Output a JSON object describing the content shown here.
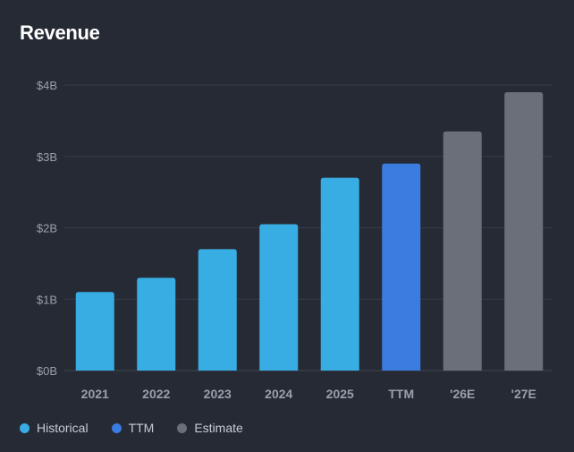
{
  "title": "Revenue",
  "colors": {
    "background": "#252a34",
    "gridline": "#363c48",
    "axis_text": "#9aa0ab",
    "historical": "#38ade4",
    "ttm": "#3b7ce0",
    "estimate": "#6b6f7a"
  },
  "legend": [
    {
      "label": "Historical",
      "color": "#38ade4"
    },
    {
      "label": "TTM",
      "color": "#3b7ce0"
    },
    {
      "label": "Estimate",
      "color": "#6b6f7a"
    }
  ],
  "chart_data": {
    "type": "bar",
    "title": "Revenue",
    "categories": [
      "2021",
      "2022",
      "2023",
      "2024",
      "2025",
      "TTM",
      "'26E",
      "'27E"
    ],
    "values": [
      1.1,
      1.3,
      1.7,
      2.05,
      2.7,
      2.9,
      3.35,
      3.9
    ],
    "groups": [
      "Historical",
      "Historical",
      "Historical",
      "Historical",
      "Historical",
      "TTM",
      "Estimate",
      "Estimate"
    ],
    "unit": "$B",
    "ylim": [
      0,
      4
    ],
    "yticks": [
      0,
      1,
      2,
      3,
      4
    ],
    "ytick_labels": [
      "$0B",
      "$1B",
      "$2B",
      "$3B",
      "$4B"
    ],
    "grid": true,
    "legend_position": "bottom-left"
  }
}
